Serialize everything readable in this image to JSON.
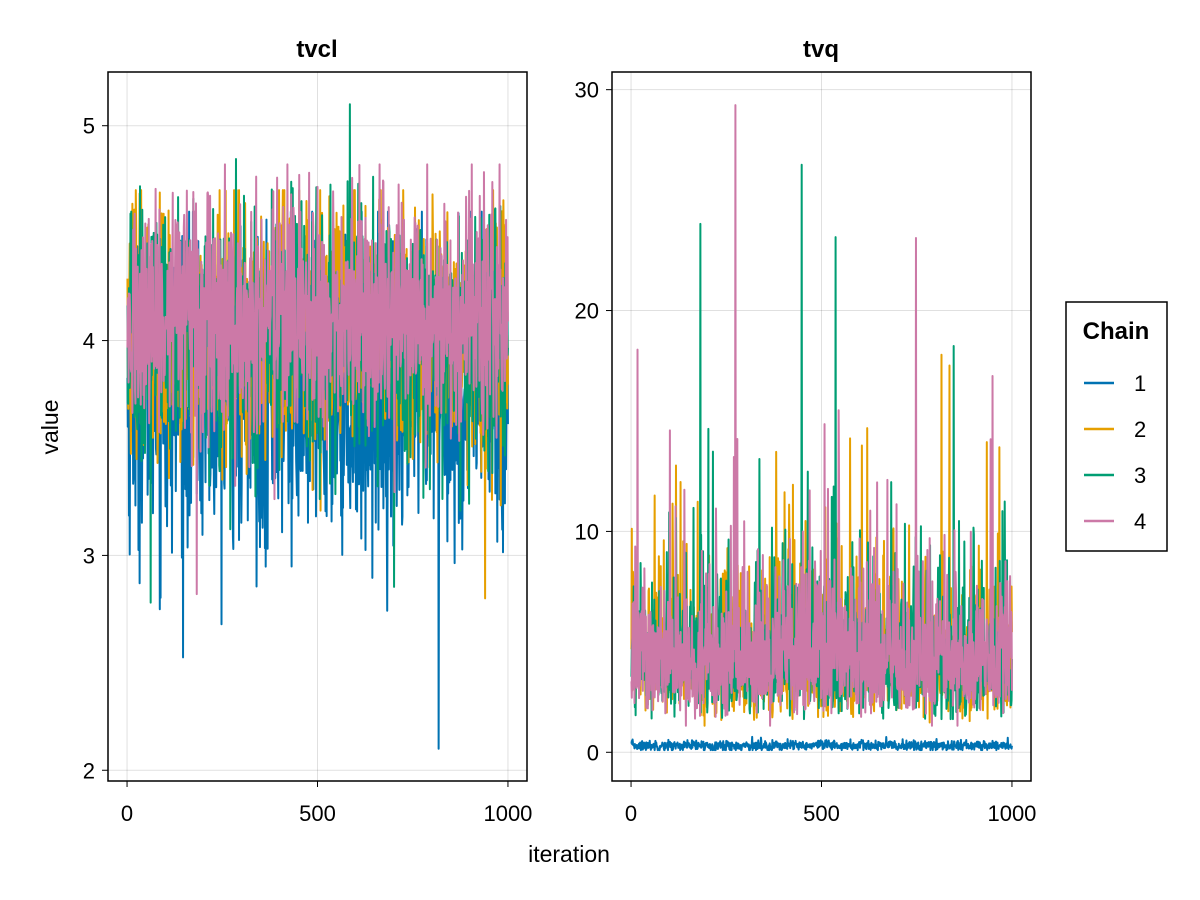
{
  "figure": {
    "xlabel": "iteration",
    "ylabel": "value"
  },
  "legend": {
    "title": "Chain",
    "placement": "right",
    "entries": [
      {
        "label": "1",
        "color": "#0072b2"
      },
      {
        "label": "2",
        "color": "#e69f00"
      },
      {
        "label": "3",
        "color": "#009e73"
      },
      {
        "label": "4",
        "color": "#cc79a7"
      }
    ]
  },
  "chart_data": [
    {
      "type": "line",
      "title": "tvcl",
      "xlabel": "iteration",
      "ylabel": "value",
      "xlim": [
        -50,
        1050
      ],
      "ylim": [
        1.95,
        5.25
      ],
      "xticks": [
        0,
        500,
        1000
      ],
      "xtick_labels": [
        "0",
        "500",
        "1000"
      ],
      "yticks": [
        2,
        3,
        4,
        5
      ],
      "ytick_labels": [
        "2",
        "3",
        "4",
        "5"
      ],
      "grid": true,
      "n_iterations": 1000,
      "series": [
        {
          "name": "1",
          "color": "#0072b2",
          "x_range": [
            1,
            1000
          ],
          "mean": 3.75,
          "spread": 0.35,
          "min": 2.1,
          "max": 4.6
        },
        {
          "name": "2",
          "color": "#e69f00",
          "x_range": [
            1,
            1000
          ],
          "mean": 4.05,
          "spread": 0.3,
          "min": 2.8,
          "max": 4.7
        },
        {
          "name": "3",
          "color": "#009e73",
          "x_range": [
            1,
            1000
          ],
          "mean": 4.05,
          "spread": 0.3,
          "min": 2.78,
          "max": 5.1
        },
        {
          "name": "4",
          "color": "#cc79a7",
          "x_range": [
            1,
            1000
          ],
          "mean": 4.1,
          "spread": 0.28,
          "min": 2.82,
          "max": 4.82
        }
      ]
    },
    {
      "type": "line",
      "title": "tvq",
      "xlabel": "iteration",
      "ylabel": "",
      "xlim": [
        -50,
        1050
      ],
      "ylim": [
        -1.3,
        30.8
      ],
      "xticks": [
        0,
        500,
        1000
      ],
      "xtick_labels": [
        "0",
        "500",
        "1000"
      ],
      "yticks": [
        0,
        10,
        20,
        30
      ],
      "ytick_labels": [
        "0",
        "10",
        "20",
        "30"
      ],
      "grid": true,
      "n_iterations": 1000,
      "series": [
        {
          "name": "1",
          "color": "#0072b2",
          "x_range": [
            1,
            1000
          ],
          "mean": 0.3,
          "spread": 0.12,
          "min": 0.1,
          "max": 0.7
        },
        {
          "name": "2",
          "color": "#e69f00",
          "x_range": [
            1,
            1000
          ],
          "mean": 4.5,
          "spread": 2.2,
          "min": 1.2,
          "max": 18.0
        },
        {
          "name": "3",
          "color": "#009e73",
          "x_range": [
            1,
            1000
          ],
          "mean": 4.6,
          "spread": 2.3,
          "min": 1.5,
          "max": 26.6
        },
        {
          "name": "4",
          "color": "#cc79a7",
          "x_range": [
            1,
            1000
          ],
          "mean": 4.6,
          "spread": 2.2,
          "min": 1.2,
          "max": 29.3
        }
      ]
    }
  ]
}
